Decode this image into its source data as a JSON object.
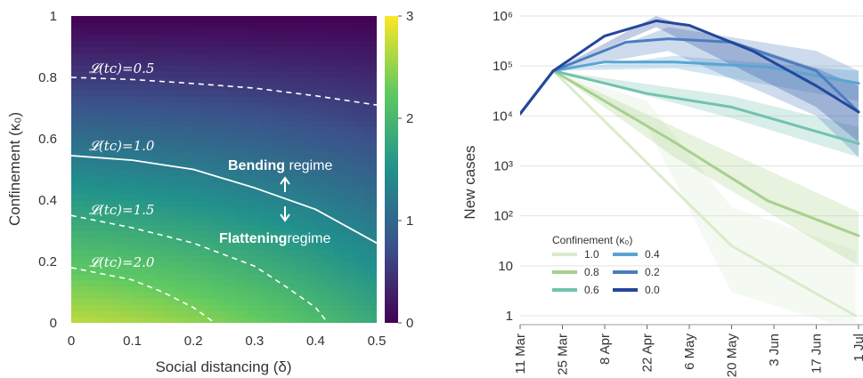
{
  "chart_data": [
    {
      "type": "heatmap",
      "xlabel": "Social distancing (δ)",
      "ylabel": "Confinement (κ₀)",
      "xlim": [
        0,
        0.5
      ],
      "ylim": [
        0,
        1
      ],
      "xticks": [
        "0",
        "0.1",
        "0.2",
        "0.3",
        "0.4",
        "0.5"
      ],
      "yticks": [
        "0",
        "0.2",
        "0.4",
        "0.6",
        "0.8",
        "1"
      ],
      "colorbar": {
        "range": [
          0,
          3
        ],
        "ticks": [
          "0",
          "1",
          "2",
          "3"
        ],
        "colormap": "viridis"
      },
      "contours": [
        {
          "label": "𝓛(tᴄ)=0.5",
          "value": 0.5,
          "style": "dashed",
          "points": [
            [
              0,
              0.8
            ],
            [
              0.1,
              0.793
            ],
            [
              0.2,
              0.78
            ],
            [
              0.3,
              0.765
            ],
            [
              0.4,
              0.74
            ],
            [
              0.5,
              0.71
            ]
          ]
        },
        {
          "label": "𝓛(tᴄ)=1.0",
          "value": 1.0,
          "style": "solid",
          "points": [
            [
              0,
              0.545
            ],
            [
              0.1,
              0.53
            ],
            [
              0.2,
              0.5
            ],
            [
              0.3,
              0.44
            ],
            [
              0.4,
              0.37
            ],
            [
              0.5,
              0.26
            ]
          ]
        },
        {
          "label": "𝓛(tᴄ)=1.5",
          "value": 1.5,
          "style": "dashed",
          "points": [
            [
              0,
              0.35
            ],
            [
              0.1,
              0.31
            ],
            [
              0.2,
              0.26
            ],
            [
              0.3,
              0.185
            ],
            [
              0.35,
              0.12
            ],
            [
              0.4,
              0.05
            ],
            [
              0.42,
              0.0
            ]
          ]
        },
        {
          "label": "𝓛(tᴄ)=2.0",
          "value": 2.0,
          "style": "dashed",
          "points": [
            [
              0,
              0.18
            ],
            [
              0.1,
              0.14
            ],
            [
              0.15,
              0.1
            ],
            [
              0.2,
              0.05
            ],
            [
              0.235,
              0.0
            ]
          ]
        }
      ],
      "annotations": {
        "bending_bold": "Bending",
        "bending_rest": " regime",
        "flattening_bold": "Flattening",
        "flattening_rest": "regime"
      }
    },
    {
      "type": "line",
      "ylabel": "New cases",
      "yscale": "log",
      "ylim": [
        1,
        1000000
      ],
      "yticks": [
        "1",
        "10",
        "10²",
        "10³",
        "10⁴",
        "10⁵",
        "10⁶"
      ],
      "xticks": [
        "11 Mar",
        "25 Mar",
        "8 Apr",
        "22 Apr",
        "6 May",
        "20 May",
        "3 Jun",
        "17 Jun",
        "1 Jul"
      ],
      "legend": {
        "title": "Confinement (κ₀)",
        "position": "bottom-left"
      },
      "series": [
        {
          "name": "1.0",
          "color": "#d9ebcc",
          "points": [
            [
              "2020-03-11",
              11000
            ],
            [
              "2020-03-22",
              80000
            ],
            [
              "2020-05-20",
              25
            ],
            [
              "2020-06-30",
              1
            ]
          ],
          "band": [
            [
              "2020-03-22",
              80000,
              80000
            ],
            [
              "2020-04-22",
              6000,
              20000
            ],
            [
              "2020-05-20",
              3,
              150
            ],
            [
              "2020-06-30",
              0.5,
              20
            ]
          ]
        },
        {
          "name": "0.8",
          "color": "#a8d08d",
          "points": [
            [
              "2020-03-11",
              11000
            ],
            [
              "2020-03-22",
              80000
            ],
            [
              "2020-05-01",
              3000
            ],
            [
              "2020-06-01",
              200
            ],
            [
              "2020-07-01",
              40
            ]
          ],
          "band": [
            [
              "2020-03-22",
              80000,
              80000
            ],
            [
              "2020-05-01",
              1500,
              6000
            ],
            [
              "2020-07-01",
              10,
              120
            ]
          ]
        },
        {
          "name": "0.6",
          "color": "#72c2ad",
          "points": [
            [
              "2020-03-11",
              11000
            ],
            [
              "2020-03-22",
              80000
            ],
            [
              "2020-04-22",
              28000
            ],
            [
              "2020-05-20",
              15000
            ],
            [
              "2020-07-01",
              2800
            ]
          ],
          "band": [
            [
              "2020-03-22",
              80000,
              80000
            ],
            [
              "2020-05-20",
              9000,
              25000
            ],
            [
              "2020-07-01",
              1500,
              6000
            ]
          ]
        },
        {
          "name": "0.4",
          "color": "#5aa5d3",
          "points": [
            [
              "2020-03-11",
              11000
            ],
            [
              "2020-03-22",
              80000
            ],
            [
              "2020-04-08",
              120000
            ],
            [
              "2020-05-01",
              120000
            ],
            [
              "2020-06-01",
              95000
            ],
            [
              "2020-07-01",
              45000
            ]
          ],
          "band": [
            [
              "2020-03-22",
              80000,
              80000
            ],
            [
              "2020-05-01",
              90000,
              160000
            ],
            [
              "2020-07-01",
              20000,
              80000
            ]
          ]
        },
        {
          "name": "0.2",
          "color": "#4a7ec0",
          "points": [
            [
              "2020-03-11",
              11000
            ],
            [
              "2020-03-22",
              80000
            ],
            [
              "2020-04-15",
              300000
            ],
            [
              "2020-04-29",
              350000
            ],
            [
              "2020-05-20",
              300000
            ],
            [
              "2020-06-17",
              80000
            ],
            [
              "2020-07-01",
              12000
            ]
          ],
          "band": [
            [
              "2020-03-22",
              80000,
              80000
            ],
            [
              "2020-04-29",
              200000,
              600000
            ],
            [
              "2020-06-17",
              10000,
              200000
            ],
            [
              "2020-07-01",
              1500,
              80000
            ]
          ]
        },
        {
          "name": "0.0",
          "color": "#23479a",
          "points": [
            [
              "2020-03-11",
              11000
            ],
            [
              "2020-03-22",
              80000
            ],
            [
              "2020-04-08",
              400000
            ],
            [
              "2020-04-25",
              800000
            ],
            [
              "2020-05-06",
              650000
            ],
            [
              "2020-05-27",
              200000
            ],
            [
              "2020-06-17",
              40000
            ],
            [
              "2020-07-01",
              12000
            ]
          ],
          "band": [
            [
              "2020-03-22",
              80000,
              80000
            ],
            [
              "2020-04-25",
              600000,
              1000000
            ],
            [
              "2020-06-17",
              15000,
              90000
            ],
            [
              "2020-07-01",
              3000,
              40000
            ]
          ]
        }
      ]
    }
  ]
}
